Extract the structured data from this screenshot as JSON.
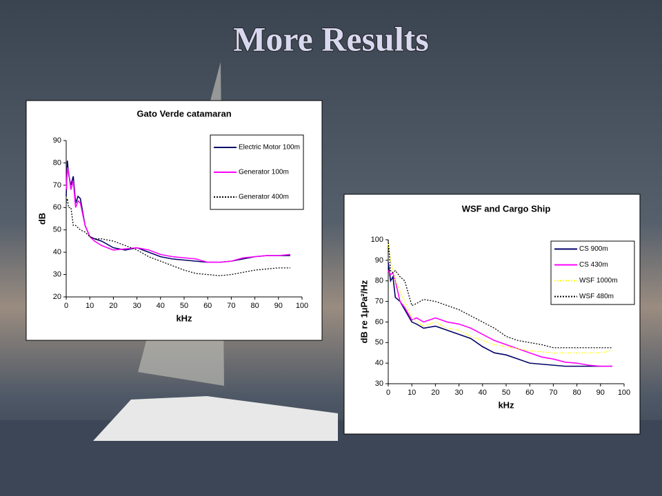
{
  "slide": {
    "title": "More Results"
  },
  "chart_data": [
    {
      "type": "line",
      "title": "Gato Verde catamaran",
      "xlabel": "kHz",
      "ylabel": "dB",
      "x": [
        0,
        0.5,
        1,
        2,
        3,
        4,
        5,
        6,
        8,
        10,
        12,
        15,
        20,
        25,
        30,
        35,
        40,
        45,
        50,
        55,
        60,
        65,
        70,
        75,
        80,
        85,
        90,
        95
      ],
      "xlim": [
        0,
        100
      ],
      "xticks": [
        0,
        10,
        20,
        30,
        40,
        50,
        60,
        70,
        80,
        90,
        100
      ],
      "ylim": [
        20,
        90
      ],
      "yticks": [
        20,
        30,
        40,
        50,
        60,
        70,
        80,
        90
      ],
      "legend": "upper right",
      "series": [
        {
          "name": "Electric Motor 100m",
          "color": "#000066",
          "style": "solid",
          "values": [
            65,
            81,
            75,
            70,
            74,
            62,
            65,
            64,
            52,
            47,
            46,
            45,
            42,
            41,
            42,
            40,
            38,
            37,
            36.5,
            36,
            35.5,
            35.5,
            36,
            37,
            38,
            38.5,
            38.5,
            38.5
          ]
        },
        {
          "name": "Generator 100m",
          "color": "#ff00ff",
          "style": "solid",
          "values": [
            68,
            78,
            76,
            68,
            72,
            60,
            63,
            62,
            52,
            47,
            45,
            43,
            41,
            41.5,
            42,
            41,
            39,
            38,
            37.5,
            37,
            35.5,
            35.5,
            36,
            37.5,
            38,
            38.5,
            38.5,
            39
          ]
        },
        {
          "name": "Generator 400m",
          "color": "#000000",
          "style": "dotted",
          "values": [
            62,
            64,
            60,
            60,
            52,
            52,
            51,
            50,
            49,
            47,
            46,
            46,
            45,
            43,
            41,
            38,
            36,
            34,
            32,
            30.5,
            30,
            29.5,
            30,
            31,
            32,
            32.5,
            33,
            33
          ]
        }
      ]
    },
    {
      "type": "line",
      "title": "WSF and Cargo Ship",
      "xlabel": "kHz",
      "ylabel": "dB re 1μPa²/Hz",
      "x": [
        0,
        1,
        2,
        3,
        5,
        7,
        10,
        12,
        15,
        20,
        25,
        30,
        35,
        40,
        45,
        50,
        55,
        60,
        65,
        70,
        75,
        80,
        85,
        90,
        95
      ],
      "xlim": [
        0,
        100
      ],
      "xticks": [
        0,
        10,
        20,
        30,
        40,
        50,
        60,
        70,
        80,
        90,
        100
      ],
      "ylim": [
        30,
        100
      ],
      "yticks": [
        30,
        40,
        50,
        60,
        70,
        80,
        90,
        100
      ],
      "legend": "upper right",
      "series": [
        {
          "name": "CS 900m",
          "color": "#000066",
          "style": "solid",
          "values": [
            89,
            80,
            82,
            72,
            70,
            66,
            60,
            59,
            57,
            58,
            56,
            54,
            52,
            48,
            45,
            44,
            42,
            40,
            39.5,
            39,
            38.5,
            38.5,
            38.5,
            38.5,
            38.5
          ]
        },
        {
          "name": "CS 430m",
          "color": "#ff00ff",
          "style": "solid",
          "values": [
            85,
            83,
            84,
            80,
            70,
            67,
            61,
            62,
            60,
            62,
            60,
            59,
            57,
            54,
            51,
            49,
            47,
            45,
            43,
            42,
            40.5,
            40,
            39,
            38.5,
            38.5
          ]
        },
        {
          "name": "WSF 1000m",
          "color": "#ffff00",
          "style": "dotted",
          "values": [
            98,
            90,
            85,
            80,
            75,
            70,
            62,
            60,
            58,
            60,
            57,
            56,
            53,
            51,
            49,
            48,
            47,
            46,
            45.5,
            45,
            45,
            45,
            45,
            45,
            46
          ]
        },
        {
          "name": "WSF 480m",
          "color": "#000000",
          "style": "dotted",
          "values": [
            100,
            85,
            84,
            85,
            82,
            80,
            68,
            69,
            71,
            70,
            68,
            66,
            63,
            60,
            57,
            53,
            51,
            50,
            49,
            47.5,
            47.5,
            47.5,
            47.5,
            47.5,
            47.5
          ]
        }
      ]
    }
  ]
}
